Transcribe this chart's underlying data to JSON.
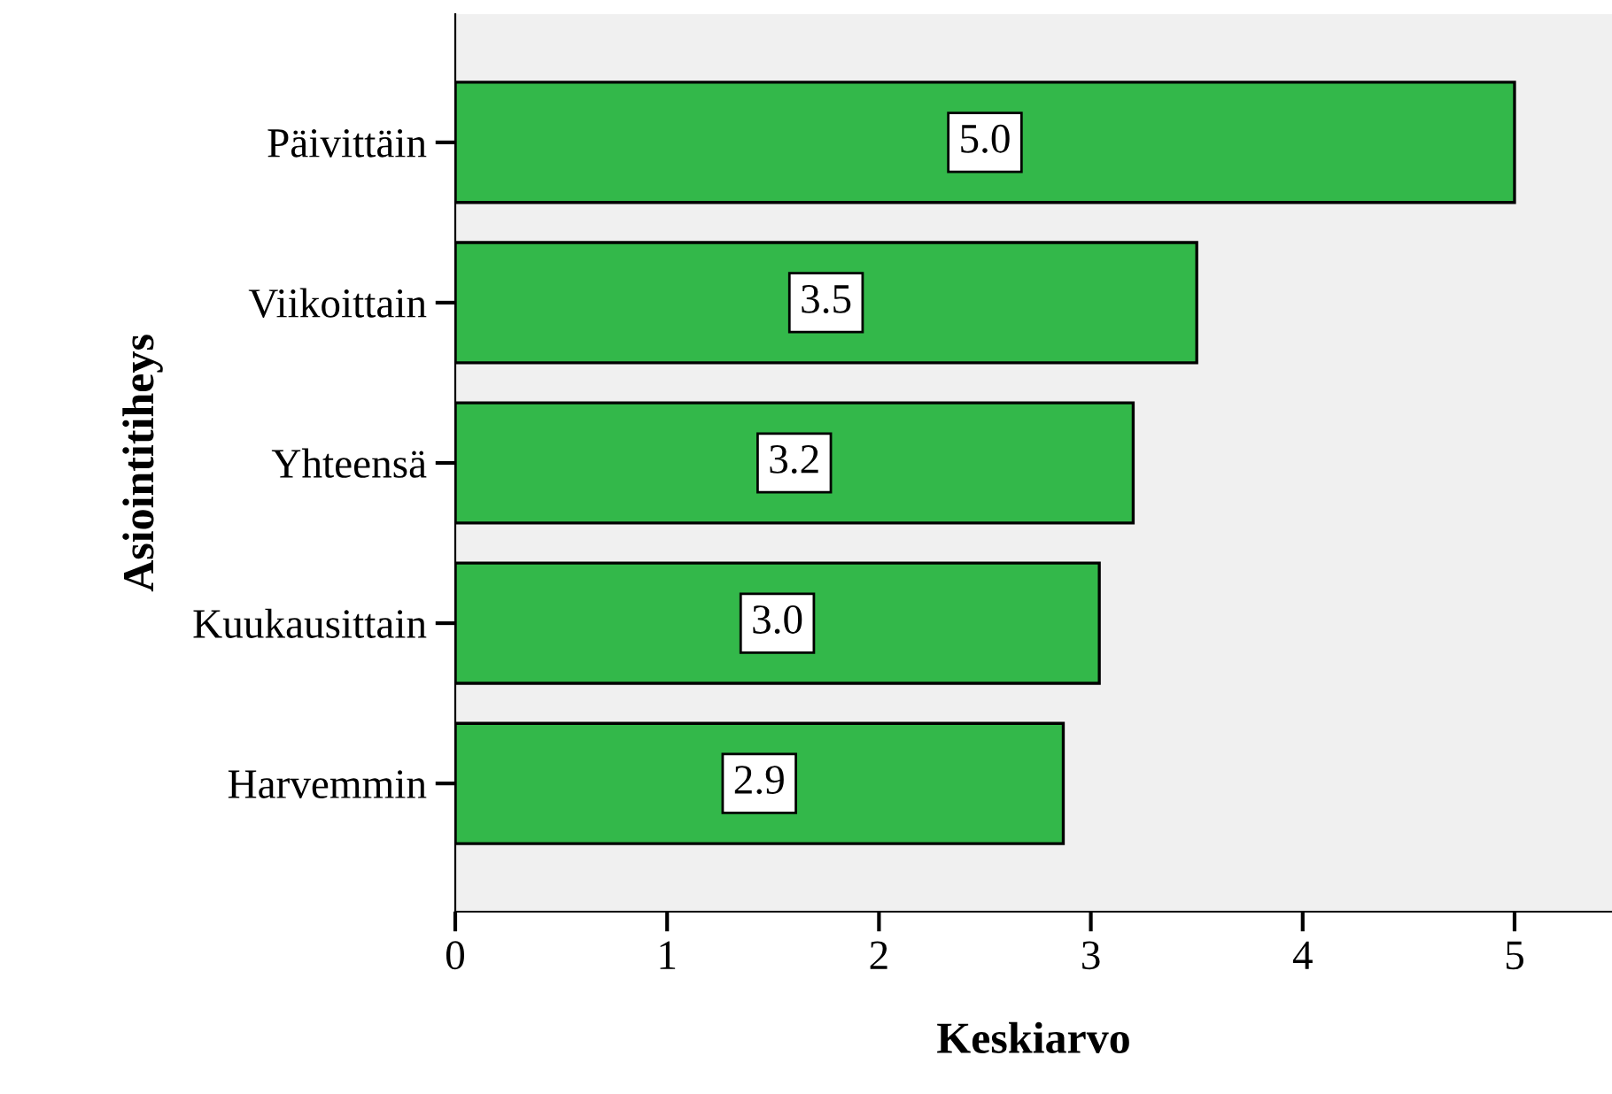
{
  "chart_data": {
    "type": "bar",
    "orientation": "horizontal",
    "xlabel": "Keskiarvo",
    "ylabel": "Asiointitiheys",
    "categories": [
      "Päivittäin",
      "Viikoittain",
      "Yhteensä",
      "Kuukausittain",
      "Harvemmin"
    ],
    "values": [
      5.0,
      3.5,
      3.2,
      3.04,
      2.87
    ],
    "value_labels": [
      "5.0",
      "3.5",
      "3.2",
      "3.0",
      "2.9"
    ],
    "color": "#33b84a",
    "xlim": [
      0,
      5.46
    ],
    "xticks": [
      0,
      1,
      2,
      3,
      4,
      5
    ],
    "grid": false,
    "legend": false
  }
}
